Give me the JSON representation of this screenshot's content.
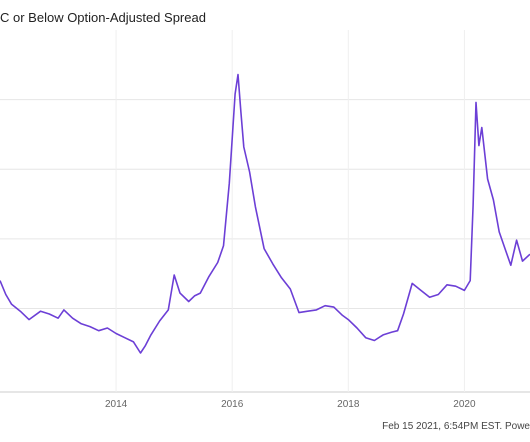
{
  "header": {
    "title": "C or Below Option-Adjusted Spread"
  },
  "footer": {
    "text": "Feb 15 2021, 6:54PM EST. Powe"
  },
  "chart_data": {
    "type": "line",
    "title": "C or Below Option-Adjusted Spread",
    "x_tick_labels": [
      "2014",
      "2016",
      "2018",
      "2020"
    ],
    "x_range": [
      2012.0,
      2021.13
    ],
    "y_range": [
      4.0,
      30.0
    ],
    "y_grid": [
      10,
      15,
      20,
      25
    ],
    "grid": true,
    "series_color": "#6c3fd6",
    "series": [
      {
        "x": [
          2012.0,
          2012.1,
          2012.2,
          2012.35,
          2012.5,
          2012.7,
          2012.85,
          2013.0,
          2013.1,
          2013.25,
          2013.4,
          2013.55,
          2013.7,
          2013.85,
          2014.0,
          2014.15,
          2014.3,
          2014.42,
          2014.5,
          2014.6,
          2014.75,
          2014.9,
          2015.0,
          2015.1,
          2015.25,
          2015.35,
          2015.45,
          2015.6,
          2015.75,
          2015.85,
          2015.95,
          2016.05,
          2016.1,
          2016.15,
          2016.2,
          2016.3,
          2016.4,
          2016.55,
          2016.7,
          2016.85,
          2017.0,
          2017.15,
          2017.3,
          2017.45,
          2017.6,
          2017.75,
          2017.9,
          2018.0,
          2018.15,
          2018.3,
          2018.45,
          2018.6,
          2018.75,
          2018.85,
          2018.95,
          2019.1,
          2019.25,
          2019.4,
          2019.55,
          2019.7,
          2019.85,
          2020.0,
          2020.1,
          2020.15,
          2020.2,
          2020.25,
          2020.3,
          2020.4,
          2020.5,
          2020.6,
          2020.7,
          2020.8,
          2020.9,
          2021.0,
          2021.13
        ],
        "values": [
          12.0,
          11.0,
          10.3,
          9.8,
          9.2,
          9.8,
          9.6,
          9.3,
          9.9,
          9.3,
          8.9,
          8.7,
          8.4,
          8.6,
          8.2,
          7.9,
          7.6,
          6.8,
          7.3,
          8.1,
          9.1,
          9.9,
          12.4,
          11.1,
          10.5,
          10.9,
          11.1,
          12.3,
          13.3,
          14.5,
          19.0,
          25.4,
          26.8,
          24.1,
          21.6,
          19.8,
          17.3,
          14.3,
          13.2,
          12.2,
          11.4,
          9.7,
          9.8,
          9.9,
          10.2,
          10.1,
          9.5,
          9.2,
          8.6,
          7.9,
          7.7,
          8.1,
          8.3,
          8.4,
          9.6,
          11.8,
          11.3,
          10.8,
          11.0,
          11.7,
          11.6,
          11.3,
          12.0,
          17.4,
          24.8,
          21.7,
          23.0,
          19.3,
          17.8,
          15.5,
          14.3,
          13.1,
          14.9,
          13.4,
          13.9
        ]
      }
    ]
  }
}
